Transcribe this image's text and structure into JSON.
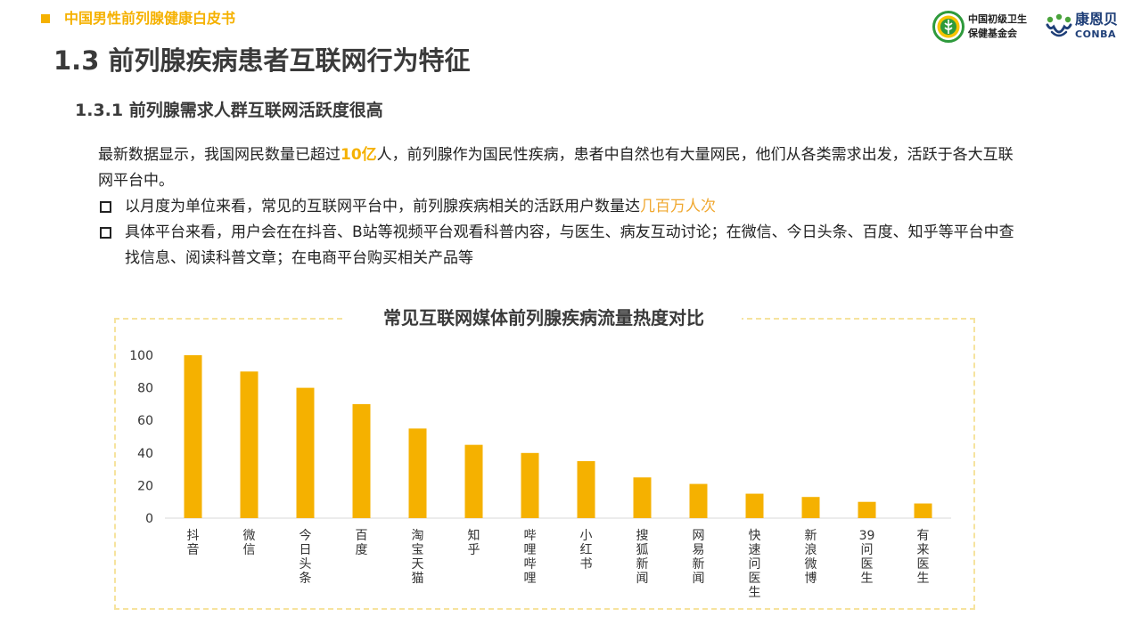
{
  "header": {
    "section": "中国男性前列腺健康白皮书",
    "accent_color": "#f5b100",
    "logos": {
      "foundation_line1": "中国初级卫生",
      "foundation_line2": "保健基金会",
      "brand_cn": "康恩贝",
      "brand_en": "CONBA"
    }
  },
  "title": "1.3 前列腺疾病患者互联网行为特征",
  "subtitle": "1.3.1 前列腺需求人群互联网活跃度很高",
  "paragraph": {
    "pre": "最新数据显示，我国网民数量已超过",
    "highlight": "10亿",
    "post": "人，前列腺作为国民性疾病，患者中自然也有大量网民，他们从各类需求出发，活跃于各大互联网平台中。"
  },
  "bullets": [
    {
      "pre": "以月度为单位来看，常见的互联网平台中，前列腺疾病相关的活跃用户数量达",
      "highlight": "几百万人次",
      "post": ""
    },
    {
      "pre": "具体平台来看，用户会在在抖音、B站等视频平台观看科普内容，与医生、病友互动讨论；在微信、今日头条、百度、知乎等平台中查找信息、阅读科普文章；在电商平台购买相关产品等",
      "highlight": "",
      "post": ""
    }
  ],
  "chart_data": {
    "type": "bar",
    "title": "常见互联网媒体前列腺疾病流量热度对比",
    "categories": [
      "抖音",
      "微信",
      "今日头条",
      "百度",
      "淘宝天猫",
      "知乎",
      "哔哩哔哩",
      "小红书",
      "搜狐新闻",
      "网易新闻",
      "快速问医生",
      "新浪微博",
      "39问医生",
      "有来医生"
    ],
    "values": [
      100,
      90,
      80,
      70,
      55,
      45,
      40,
      35,
      25,
      21,
      15,
      13,
      10,
      9
    ],
    "yticks": [
      "0",
      "20",
      "40",
      "60",
      "80",
      "100"
    ],
    "ylim": [
      0,
      100
    ],
    "xlabel": "",
    "ylabel": "",
    "grid": false,
    "bar_color": "#f5b100",
    "highlight_color": "#f0a830"
  }
}
